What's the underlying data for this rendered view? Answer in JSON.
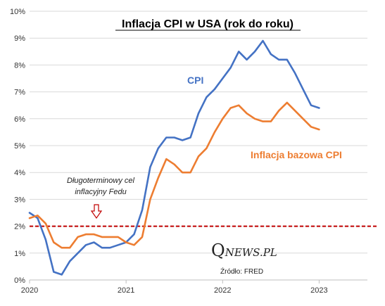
{
  "chart_data": {
    "type": "line",
    "title": "Inflacja CPI w USA (rok do roku)",
    "xlabel": "",
    "ylabel": "",
    "xlim": [
      2020.0,
      2023.5
    ],
    "ylim": [
      0,
      10
    ],
    "x_ticks": [
      2020,
      2021,
      2022,
      2023
    ],
    "x_tick_labels": [
      "2020",
      "2021",
      "2022",
      "2023"
    ],
    "y_ticks": [
      0,
      1,
      2,
      3,
      4,
      5,
      6,
      7,
      8,
      9,
      10
    ],
    "y_tick_labels": [
      "0%",
      "1%",
      "2%",
      "3%",
      "4%",
      "5%",
      "6%",
      "7%",
      "8%",
      "9%",
      "10%"
    ],
    "grid": "horizontal",
    "series": [
      {
        "name": "CPI",
        "color": "#4472C4",
        "x": [
          2020.0,
          2020.083,
          2020.167,
          2020.25,
          2020.333,
          2020.417,
          2020.5,
          2020.583,
          2020.667,
          2020.75,
          2020.833,
          2020.917,
          2021.0,
          2021.083,
          2021.167,
          2021.25,
          2021.333,
          2021.417,
          2021.5,
          2021.583,
          2021.667,
          2021.75,
          2021.833,
          2021.917,
          2022.0,
          2022.083,
          2022.167,
          2022.25,
          2022.333,
          2022.417,
          2022.5,
          2022.583,
          2022.667,
          2022.75,
          2022.833,
          2022.917,
          2023.0
        ],
        "values": [
          2.5,
          2.3,
          1.5,
          0.3,
          0.2,
          0.7,
          1.0,
          1.3,
          1.4,
          1.2,
          1.2,
          1.3,
          1.4,
          1.7,
          2.6,
          4.2,
          4.9,
          5.3,
          5.3,
          5.2,
          5.3,
          6.2,
          6.8,
          7.1,
          7.5,
          7.9,
          8.5,
          8.2,
          8.5,
          8.9,
          8.4,
          8.2,
          8.2,
          7.7,
          7.1,
          6.5,
          6.4
        ]
      },
      {
        "name": "Inflacja bazowa CPI",
        "color": "#ED7D31",
        "x": [
          2020.0,
          2020.083,
          2020.167,
          2020.25,
          2020.333,
          2020.417,
          2020.5,
          2020.583,
          2020.667,
          2020.75,
          2020.833,
          2020.917,
          2021.0,
          2021.083,
          2021.167,
          2021.25,
          2021.333,
          2021.417,
          2021.5,
          2021.583,
          2021.667,
          2021.75,
          2021.833,
          2021.917,
          2022.0,
          2022.083,
          2022.167,
          2022.25,
          2022.333,
          2022.417,
          2022.5,
          2022.583,
          2022.667,
          2022.75,
          2022.833,
          2022.917,
          2023.0
        ],
        "values": [
          2.3,
          2.4,
          2.1,
          1.4,
          1.2,
          1.2,
          1.6,
          1.7,
          1.7,
          1.6,
          1.6,
          1.6,
          1.4,
          1.3,
          1.6,
          3.0,
          3.8,
          4.5,
          4.3,
          4.0,
          4.0,
          4.6,
          4.9,
          5.5,
          6.0,
          6.4,
          6.5,
          6.2,
          6.0,
          5.9,
          5.9,
          6.3,
          6.6,
          6.3,
          6.0,
          5.7,
          5.6
        ]
      }
    ],
    "reference_line": {
      "value": 2,
      "color": "#C00000",
      "style": "dashed",
      "label": "Długoterminowy cel inflacyjny Fedu"
    },
    "annotations": {
      "cpi_label": "CPI",
      "core_label": "Inflacja bazowa CPI",
      "target_line1": "Długoterminowy cel",
      "target_line2": "inflacyjny Fedu",
      "arrow_icon": "down-arrow-icon",
      "brand_q": "Q",
      "brand_rest": "NEWS.PL",
      "source": "Źródło: FRED"
    }
  }
}
